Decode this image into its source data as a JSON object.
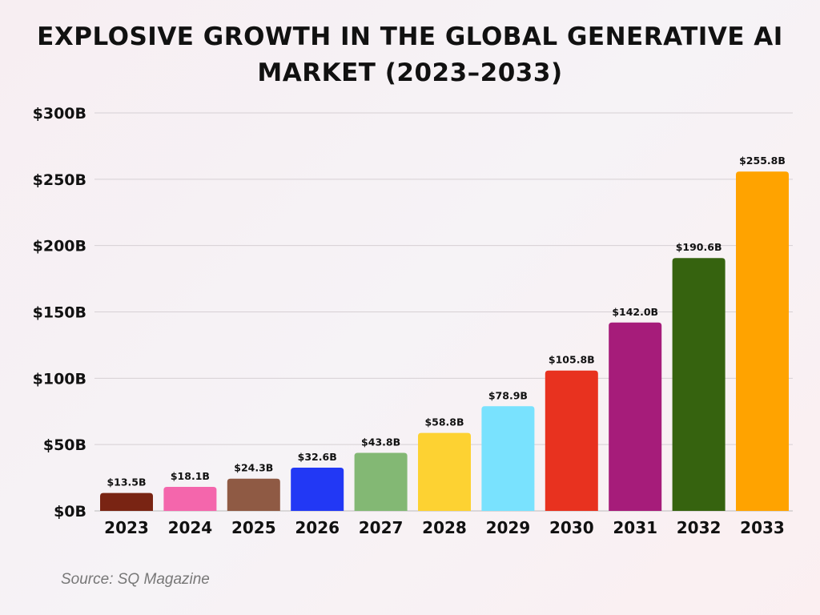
{
  "chart_data": {
    "type": "bar",
    "title": "EXPLOSIVE GROWTH IN THE GLOBAL GENERATIVE AI MARKET (2023–2033)",
    "xlabel": "",
    "ylabel": "",
    "categories": [
      "2023",
      "2024",
      "2025",
      "2026",
      "2027",
      "2028",
      "2029",
      "2030",
      "2031",
      "2032",
      "2033"
    ],
    "values": [
      13.5,
      18.1,
      24.3,
      32.6,
      43.8,
      58.8,
      78.9,
      105.8,
      142.0,
      190.6,
      255.8
    ],
    "data_labels": [
      "$13.5B",
      "$18.1B",
      "$24.3B",
      "$32.6B",
      "$43.8B",
      "$58.8B",
      "$78.9B",
      "$105.8B",
      "$142.0B",
      "$190.6B",
      "$255.8B"
    ],
    "colors": [
      "#792413",
      "#f466ac",
      "#8f5a44",
      "#2238f5",
      "#83b874",
      "#fdd232",
      "#79e2fe",
      "#e8321f",
      "#a61c7a",
      "#36630f",
      "#ffa300"
    ],
    "ylim": [
      0,
      300
    ],
    "yticks": [
      0,
      50,
      100,
      150,
      200,
      250,
      300
    ],
    "ytick_labels": [
      "$0B",
      "$50B",
      "$100B",
      "$150B",
      "$200B",
      "$250B",
      "$300B"
    ],
    "grid": true,
    "legend": "none"
  },
  "source": "Source: SQ Magazine"
}
